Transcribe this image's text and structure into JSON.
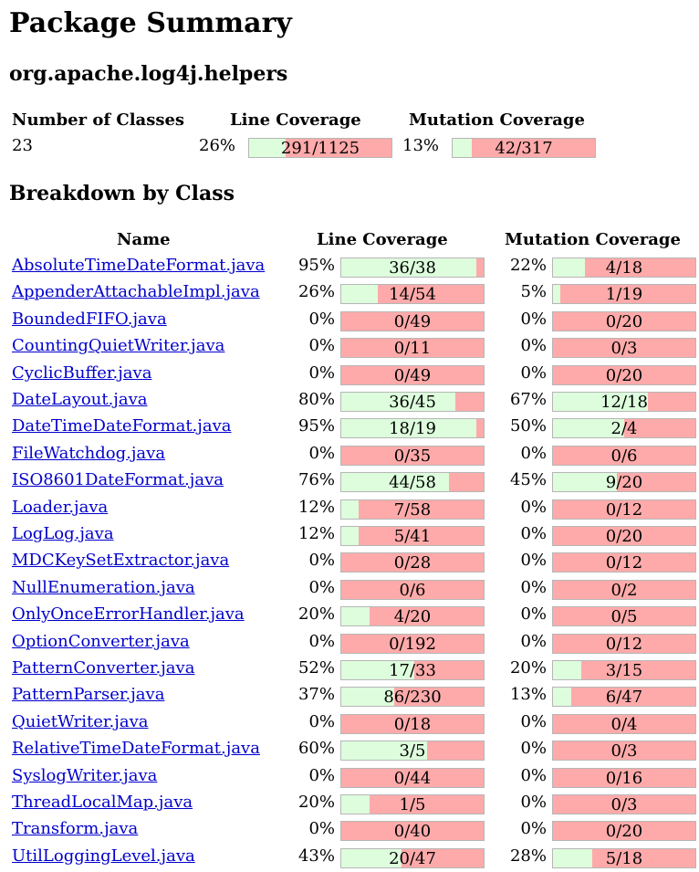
{
  "title": "Package Summary",
  "package_name": "org.apache.log4j.helpers",
  "summary": {
    "headers": {
      "classes": "Number of Classes",
      "line": "Line Coverage",
      "mutation": "Mutation Coverage"
    },
    "num_classes": "23",
    "line_pct": "26%",
    "line_frac": "291/1125",
    "mutation_pct": "13%",
    "mutation_frac": "42/317"
  },
  "breakdown_title": "Breakdown by Class",
  "table_headers": {
    "name": "Name",
    "line": "Line Coverage",
    "mutation": "Mutation Coverage"
  },
  "colors": {
    "covered": "#ddfddd",
    "uncovered": "#ffaaaa",
    "link": "#0000cc"
  },
  "classes": [
    {
      "name": "AbsoluteTimeDateFormat.java",
      "line_pct": "95%",
      "line_frac": "36/38",
      "mut_pct": "22%",
      "mut_frac": "4/18"
    },
    {
      "name": "AppenderAttachableImpl.java",
      "line_pct": "26%",
      "line_frac": "14/54",
      "mut_pct": "5%",
      "mut_frac": "1/19"
    },
    {
      "name": "BoundedFIFO.java",
      "line_pct": "0%",
      "line_frac": "0/49",
      "mut_pct": "0%",
      "mut_frac": "0/20"
    },
    {
      "name": "CountingQuietWriter.java",
      "line_pct": "0%",
      "line_frac": "0/11",
      "mut_pct": "0%",
      "mut_frac": "0/3"
    },
    {
      "name": "CyclicBuffer.java",
      "line_pct": "0%",
      "line_frac": "0/49",
      "mut_pct": "0%",
      "mut_frac": "0/20"
    },
    {
      "name": "DateLayout.java",
      "line_pct": "80%",
      "line_frac": "36/45",
      "mut_pct": "67%",
      "mut_frac": "12/18"
    },
    {
      "name": "DateTimeDateFormat.java",
      "line_pct": "95%",
      "line_frac": "18/19",
      "mut_pct": "50%",
      "mut_frac": "2/4"
    },
    {
      "name": "FileWatchdog.java",
      "line_pct": "0%",
      "line_frac": "0/35",
      "mut_pct": "0%",
      "mut_frac": "0/6"
    },
    {
      "name": "ISO8601DateFormat.java",
      "line_pct": "76%",
      "line_frac": "44/58",
      "mut_pct": "45%",
      "mut_frac": "9/20"
    },
    {
      "name": "Loader.java",
      "line_pct": "12%",
      "line_frac": "7/58",
      "mut_pct": "0%",
      "mut_frac": "0/12"
    },
    {
      "name": "LogLog.java",
      "line_pct": "12%",
      "line_frac": "5/41",
      "mut_pct": "0%",
      "mut_frac": "0/20"
    },
    {
      "name": "MDCKeySetExtractor.java",
      "line_pct": "0%",
      "line_frac": "0/28",
      "mut_pct": "0%",
      "mut_frac": "0/12"
    },
    {
      "name": "NullEnumeration.java",
      "line_pct": "0%",
      "line_frac": "0/6",
      "mut_pct": "0%",
      "mut_frac": "0/2"
    },
    {
      "name": "OnlyOnceErrorHandler.java",
      "line_pct": "20%",
      "line_frac": "4/20",
      "mut_pct": "0%",
      "mut_frac": "0/5"
    },
    {
      "name": "OptionConverter.java",
      "line_pct": "0%",
      "line_frac": "0/192",
      "mut_pct": "0%",
      "mut_frac": "0/12"
    },
    {
      "name": "PatternConverter.java",
      "line_pct": "52%",
      "line_frac": "17/33",
      "mut_pct": "20%",
      "mut_frac": "3/15"
    },
    {
      "name": "PatternParser.java",
      "line_pct": "37%",
      "line_frac": "86/230",
      "mut_pct": "13%",
      "mut_frac": "6/47"
    },
    {
      "name": "QuietWriter.java",
      "line_pct": "0%",
      "line_frac": "0/18",
      "mut_pct": "0%",
      "mut_frac": "0/4"
    },
    {
      "name": "RelativeTimeDateFormat.java",
      "line_pct": "60%",
      "line_frac": "3/5",
      "mut_pct": "0%",
      "mut_frac": "0/3"
    },
    {
      "name": "SyslogWriter.java",
      "line_pct": "0%",
      "line_frac": "0/44",
      "mut_pct": "0%",
      "mut_frac": "0/16"
    },
    {
      "name": "ThreadLocalMap.java",
      "line_pct": "20%",
      "line_frac": "1/5",
      "mut_pct": "0%",
      "mut_frac": "0/3"
    },
    {
      "name": "Transform.java",
      "line_pct": "0%",
      "line_frac": "0/40",
      "mut_pct": "0%",
      "mut_frac": "0/20"
    },
    {
      "name": "UtilLoggingLevel.java",
      "line_pct": "43%",
      "line_frac": "20/47",
      "mut_pct": "28%",
      "mut_frac": "5/18"
    }
  ]
}
